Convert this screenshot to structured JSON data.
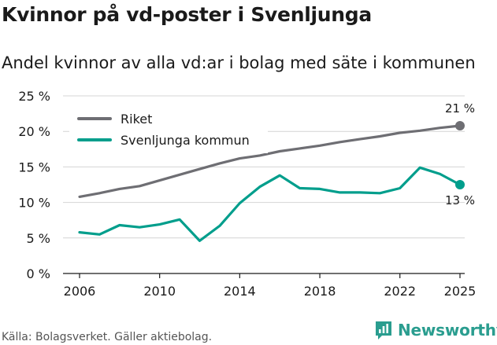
{
  "header": {
    "title": "Kvinnor på vd-poster i Svenljunga",
    "subtitle": "Andel kvinnor av alla vd:ar i bolag med säte i kommunen"
  },
  "footer": {
    "source": "Källa: Bolagsverket. Gäller aktiebolag.",
    "brand": "Newsworthy"
  },
  "colors": {
    "riket": "#6e6e73",
    "kommun": "#009e8c",
    "grid": "#d4d4d4",
    "brand": "#2a9d8f"
  },
  "chart_data": {
    "type": "line",
    "title": "Kvinnor på vd-poster i Svenljunga",
    "subtitle": "Andel kvinnor av alla vd:ar i bolag med säte i kommunen",
    "xlabel": "",
    "ylabel": "",
    "x": [
      2006,
      2007,
      2008,
      2009,
      2010,
      2011,
      2012,
      2013,
      2014,
      2015,
      2016,
      2017,
      2018,
      2019,
      2020,
      2021,
      2022,
      2023,
      2024,
      2025
    ],
    "xticks": [
      2006,
      2010,
      2014,
      2018,
      2022,
      2025
    ],
    "xtick_labels": [
      "2006",
      "2010",
      "2014",
      "2018",
      "2022",
      "2025"
    ],
    "ylim": [
      0,
      25
    ],
    "yticks": [
      0,
      5,
      10,
      15,
      20,
      25
    ],
    "ytick_labels": [
      "0 %",
      "5 %",
      "10 %",
      "15 %",
      "20 %",
      "25 %"
    ],
    "grid": true,
    "legend_position": "top-left",
    "series": [
      {
        "name": "Riket",
        "key": "riket",
        "values": [
          10.8,
          11.3,
          11.9,
          12.3,
          13.1,
          13.9,
          14.7,
          15.5,
          16.2,
          16.6,
          17.2,
          17.6,
          18.0,
          18.5,
          18.9,
          19.3,
          19.8,
          20.1,
          20.5,
          20.8
        ],
        "end_label": "21 %"
      },
      {
        "name": "Svenljunga kommun",
        "key": "kommun",
        "values": [
          5.8,
          5.5,
          6.8,
          6.5,
          6.9,
          7.6,
          4.6,
          6.7,
          9.9,
          12.2,
          13.8,
          12.0,
          11.9,
          11.4,
          11.4,
          11.3,
          12.0,
          14.9,
          14.0,
          12.5
        ],
        "end_label": "13 %"
      }
    ]
  }
}
